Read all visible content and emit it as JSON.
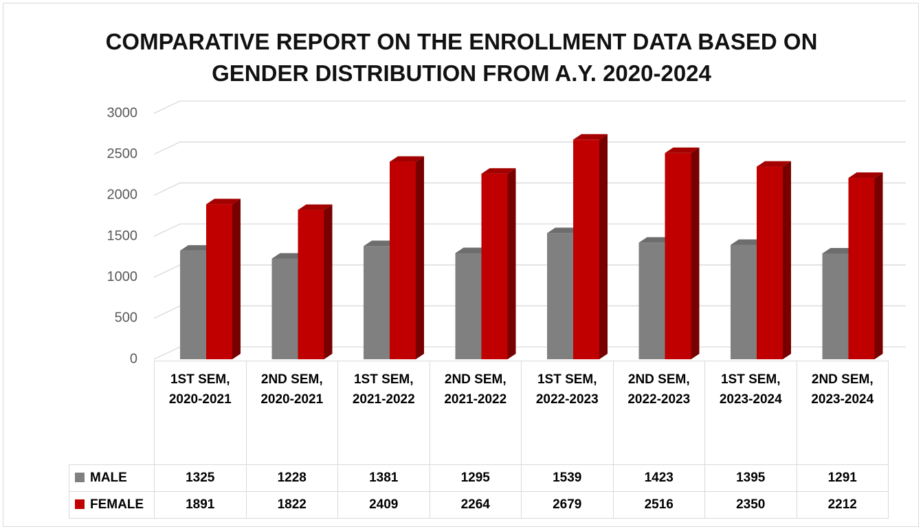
{
  "chart_data": {
    "type": "bar",
    "title": "COMPARATIVE REPORT ON THE ENROLLMENT DATA BASED ON GENDER DISTRIBUTION FROM A.Y. 2020-2024",
    "categories": [
      "1ST SEM, 2020-2021",
      "2ND SEM, 2020-2021",
      "1ST SEM, 2021-2022",
      "2ND SEM, 2021-2022",
      "1ST SEM, 2022-2023",
      "2ND SEM, 2022-2023",
      "1ST SEM, 2023-2024",
      "2ND SEM, 2023-2024"
    ],
    "series": [
      {
        "name": "MALE",
        "color": "#808080",
        "values": [
          1325,
          1228,
          1381,
          1295,
          1539,
          1423,
          1395,
          1291
        ]
      },
      {
        "name": "FEMALE",
        "color": "#c00000",
        "values": [
          1891,
          1822,
          2409,
          2264,
          2679,
          2516,
          2350,
          2212
        ]
      }
    ],
    "ylim": [
      0,
      3000
    ],
    "yticks": [
      0,
      500,
      1000,
      1500,
      2000,
      2500,
      3000
    ],
    "grid": true
  }
}
